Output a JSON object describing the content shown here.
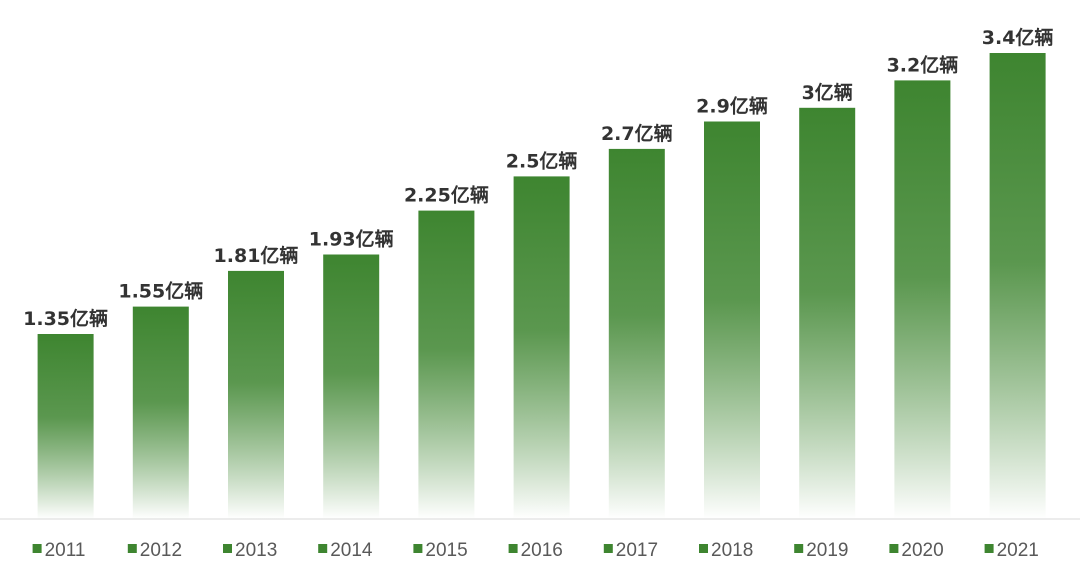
{
  "chart_data": {
    "type": "bar",
    "title": "",
    "xlabel": "",
    "ylabel": "",
    "ylim": [
      0,
      3.4
    ],
    "categories": [
      "2011",
      "2012",
      "2013",
      "2014",
      "2015",
      "2016",
      "2017",
      "2018",
      "2019",
      "2020",
      "2021"
    ],
    "values": [
      1.35,
      1.55,
      1.81,
      1.93,
      2.25,
      2.5,
      2.7,
      2.9,
      3,
      3.2,
      3.4
    ],
    "data_labels": [
      "1.35亿辆",
      "1.55亿辆",
      "1.81亿辆",
      "1.93亿辆",
      "2.25亿辆",
      "2.5亿辆",
      "2.7亿辆",
      "2.9亿辆",
      "3亿辆",
      "3.2亿辆",
      "3.4亿辆"
    ],
    "grid": false,
    "legend": "none"
  },
  "colors": {
    "bar_top": "#3e8530",
    "bar_bottom": "#ffffff",
    "baseline": "#d9d9d9",
    "tick_marker": "#3e8530"
  }
}
